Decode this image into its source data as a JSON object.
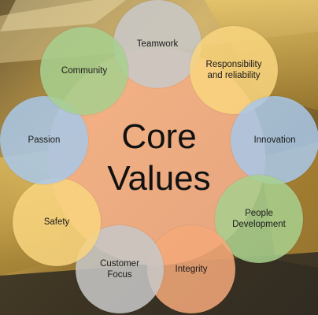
{
  "center": {
    "line1": "Core",
    "line2": "Values",
    "color": "#f5b08a"
  },
  "values": [
    {
      "label": "Teamwork",
      "color": "#c9c9c9"
    },
    {
      "label": "Responsibility\nand reliability",
      "color": "#f9d57f"
    },
    {
      "label": "Innovation",
      "color": "#a9c8e8"
    },
    {
      "label": "People\nDevelopment",
      "color": "#a8d08e"
    },
    {
      "label": "Integrity",
      "color": "#f5a97a"
    },
    {
      "label": "Customer\nFocus",
      "color": "#c8c8c8"
    },
    {
      "label": "Safety",
      "color": "#f9d57f"
    },
    {
      "label": "Passion",
      "color": "#a9c8e8"
    },
    {
      "label": "Community",
      "color": "#a8d08e"
    }
  ]
}
